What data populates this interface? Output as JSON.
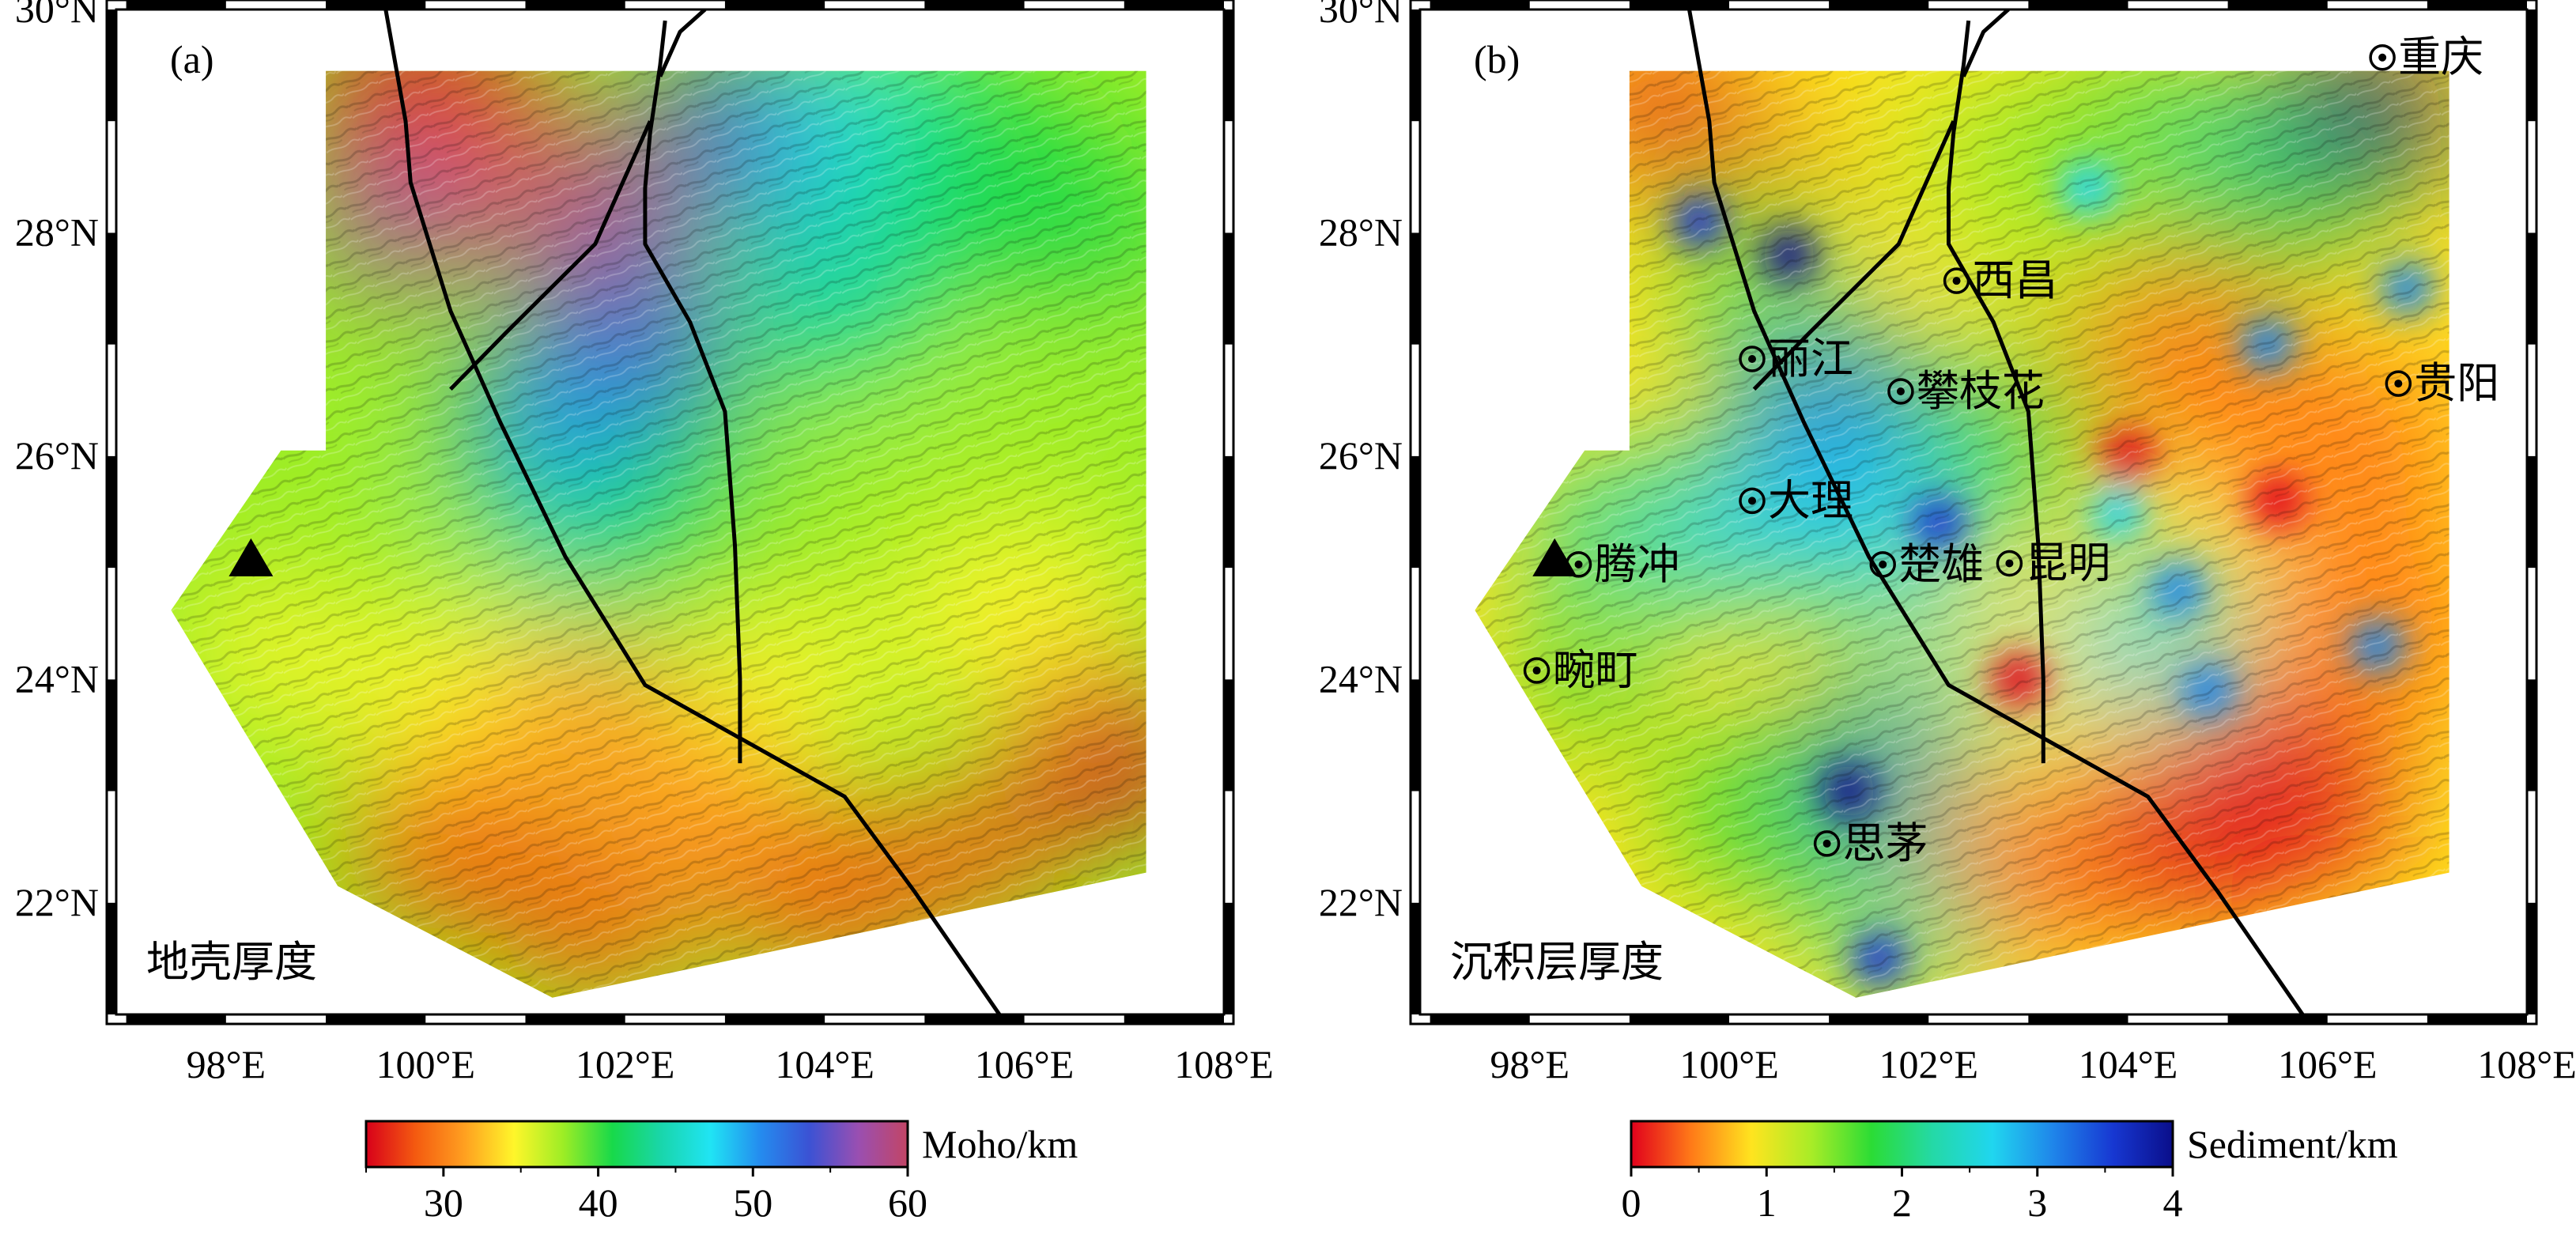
{
  "lat_labels": [
    "30°N",
    "28°N",
    "26°N",
    "24°N",
    "22°N"
  ],
  "lon_labels": [
    "98°E",
    "100°E",
    "102°E",
    "104°E",
    "106°E",
    "108°E"
  ],
  "panels": [
    {
      "tag": "(a)",
      "title": "地壳厚度",
      "colorbar": {
        "label": "Moho/km",
        "ticks": [
          "30",
          "40",
          "50",
          "60"
        ],
        "palette": [
          "#d8001a",
          "#f45a10",
          "#ffa020",
          "#fff62a",
          "#9ded25",
          "#18d94a",
          "#19d6ab",
          "#20e4f4",
          "#248cef",
          "#3b52d4",
          "#9a4fb1",
          "#c24565"
        ]
      },
      "cities": []
    },
    {
      "tag": "(b)",
      "title": "沉积层厚度",
      "colorbar": {
        "label": "Sediment/km",
        "ticks": [
          "0",
          "1",
          "2",
          "3",
          "4"
        ],
        "palette": [
          "#e1001c",
          "#ff7a18",
          "#ffe41f",
          "#a8ec27",
          "#2bdc35",
          "#24d9a6",
          "#20d6ef",
          "#1f86ea",
          "#1738d2",
          "#0a0e8a"
        ]
      },
      "cities": [
        {
          "name": "重庆",
          "lon": 106.55,
          "lat": 29.57
        },
        {
          "name": "西昌",
          "lon": 102.28,
          "lat": 27.57
        },
        {
          "name": "丽江",
          "lon": 100.23,
          "lat": 26.87
        },
        {
          "name": "攀枝花",
          "lon": 101.72,
          "lat": 26.58
        },
        {
          "name": "贵阳",
          "lon": 106.71,
          "lat": 26.65
        },
        {
          "name": "大理",
          "lon": 100.23,
          "lat": 25.6
        },
        {
          "name": "腾冲",
          "lon": 98.49,
          "lat": 25.03
        },
        {
          "name": "楚雄",
          "lon": 101.54,
          "lat": 25.03
        },
        {
          "name": "昆明",
          "lon": 102.81,
          "lat": 25.04
        },
        {
          "name": "畹町",
          "lon": 98.07,
          "lat": 24.08
        },
        {
          "name": "思茅",
          "lon": 100.98,
          "lat": 22.53
        }
      ]
    }
  ],
  "map_extent": {
    "lon": [
      96.9,
      108.0
    ],
    "lat": [
      21.0,
      30.0
    ]
  },
  "station": {
    "lon": 98.25,
    "lat": 25.08
  }
}
